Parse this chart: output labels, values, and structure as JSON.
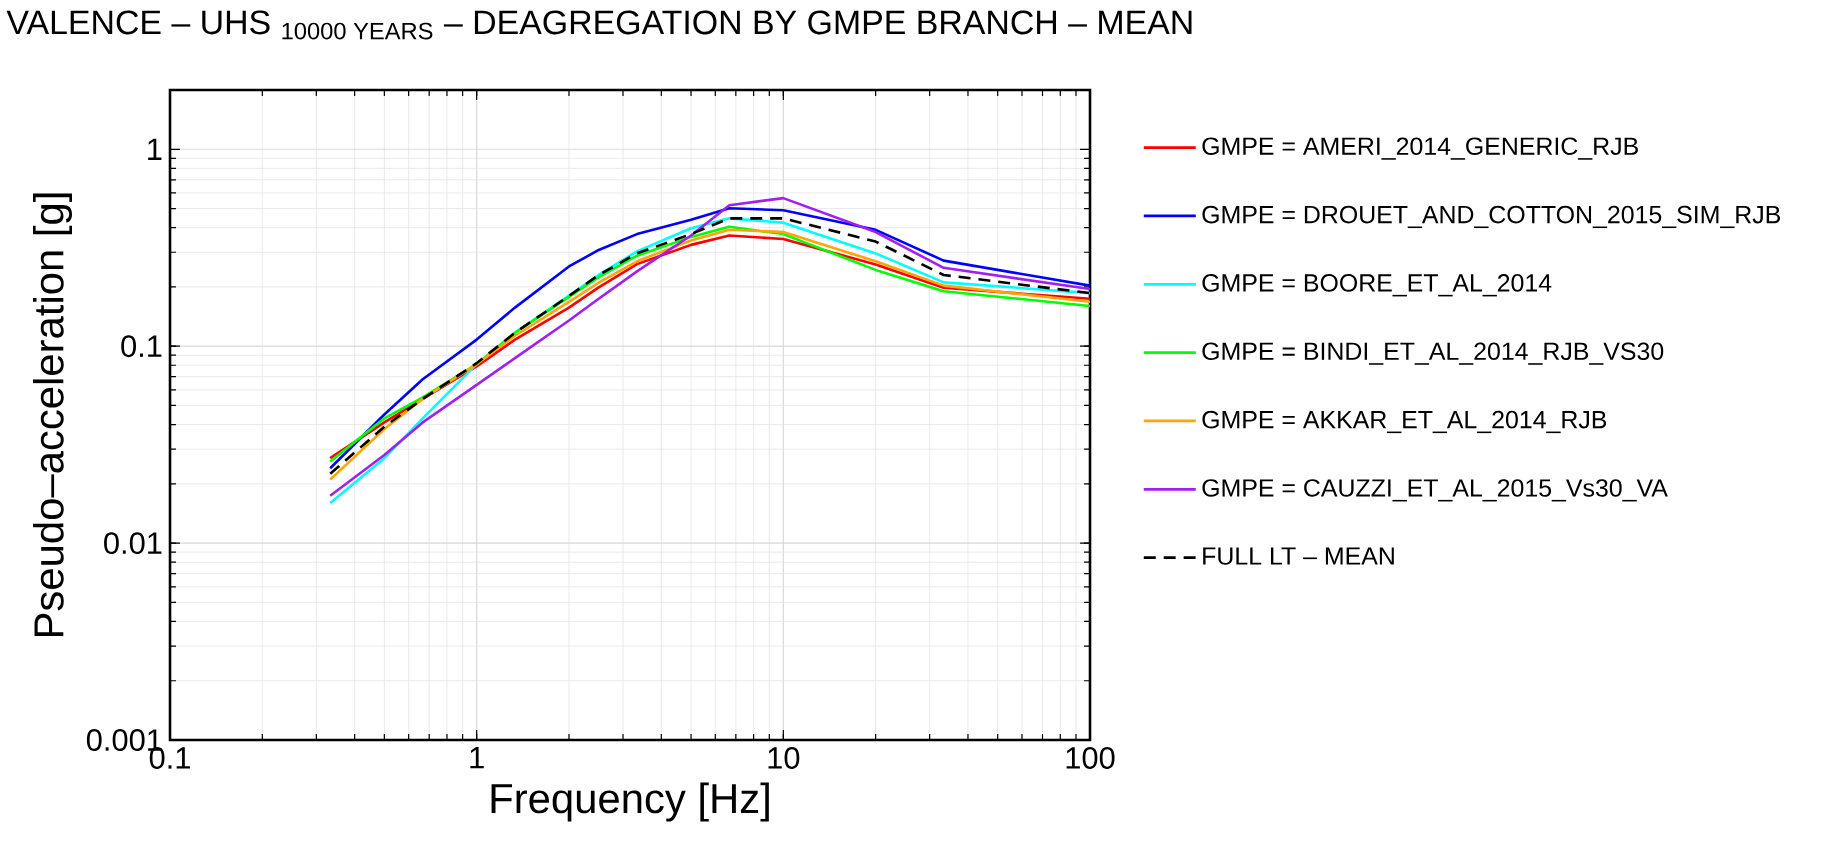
{
  "chart_data": {
    "type": "line",
    "title": "\\text{VALENCE – UHS }_{\\text{10000 YEARS}}\\text{ – DEAGREGATION BY GMPE BRANCH – MEAN}",
    "xlabel": "Frequency [Hz]",
    "ylabel": "Pseudo–acceleration [g]",
    "log": "xy",
    "grid": true,
    "legend": "right",
    "xlim": [
      0.1,
      100
    ],
    "ylim": [
      0.001,
      2
    ],
    "xticks": [
      0.1,
      1,
      10,
      100
    ],
    "yticks": [
      0.001,
      0.01,
      0.1,
      1
    ],
    "x": [
      0.333,
      0.5,
      0.667,
      1,
      1.333,
      2,
      2.5,
      3.333,
      5,
      6.667,
      10,
      20,
      33.33,
      100
    ],
    "series": [
      {
        "name": "GMPE = AMERI_2014_GENERIC_RJB",
        "color": "#ff0000",
        "values": [
          0.027,
          0.041,
          0.054,
          0.079,
          0.108,
          0.157,
          0.199,
          0.261,
          0.327,
          0.365,
          0.35,
          0.26,
          0.198,
          0.174
        ]
      },
      {
        "name": "GMPE = DROUET_AND_COTTON_2015_SIM_RJB",
        "color": "#0000ff",
        "values": [
          0.024,
          0.045,
          0.068,
          0.108,
          0.157,
          0.254,
          0.308,
          0.371,
          0.439,
          0.502,
          0.49,
          0.39,
          0.272,
          0.203
        ]
      },
      {
        "name": "GMPE = BOORE_ET_AL_2014",
        "color": "#00ffff",
        "values": [
          0.016,
          0.027,
          0.043,
          0.081,
          0.117,
          0.181,
          0.23,
          0.303,
          0.397,
          0.446,
          0.424,
          0.296,
          0.211,
          0.186
        ]
      },
      {
        "name": "GMPE = BINDI_ET_AL_2014_RJB_VS30",
        "color": "#00ff00",
        "values": [
          0.026,
          0.043,
          0.055,
          0.081,
          0.117,
          0.178,
          0.224,
          0.288,
          0.359,
          0.404,
          0.371,
          0.244,
          0.19,
          0.16
        ]
      },
      {
        "name": "GMPE = AKKAR_ET_AL_2014_RJB",
        "color": "#ffa500",
        "values": [
          0.021,
          0.038,
          0.054,
          0.081,
          0.113,
          0.168,
          0.21,
          0.27,
          0.344,
          0.39,
          0.38,
          0.27,
          0.203,
          0.168
        ]
      },
      {
        "name": "GMPE = CAUZZI_ET_AL_2015_Vs30_VA",
        "color": "#a020f0",
        "values": [
          0.0174,
          0.028,
          0.041,
          0.0636,
          0.087,
          0.135,
          0.174,
          0.24,
          0.365,
          0.52,
          0.565,
          0.38,
          0.25,
          0.195
        ]
      },
      {
        "name": "FULL LT – MEAN",
        "color": "#000000",
        "line_style": "dashed",
        "values": [
          0.0225,
          0.039,
          0.054,
          0.082,
          0.117,
          0.18,
          0.23,
          0.296,
          0.371,
          0.446,
          0.446,
          0.34,
          0.23,
          0.186
        ]
      }
    ]
  }
}
